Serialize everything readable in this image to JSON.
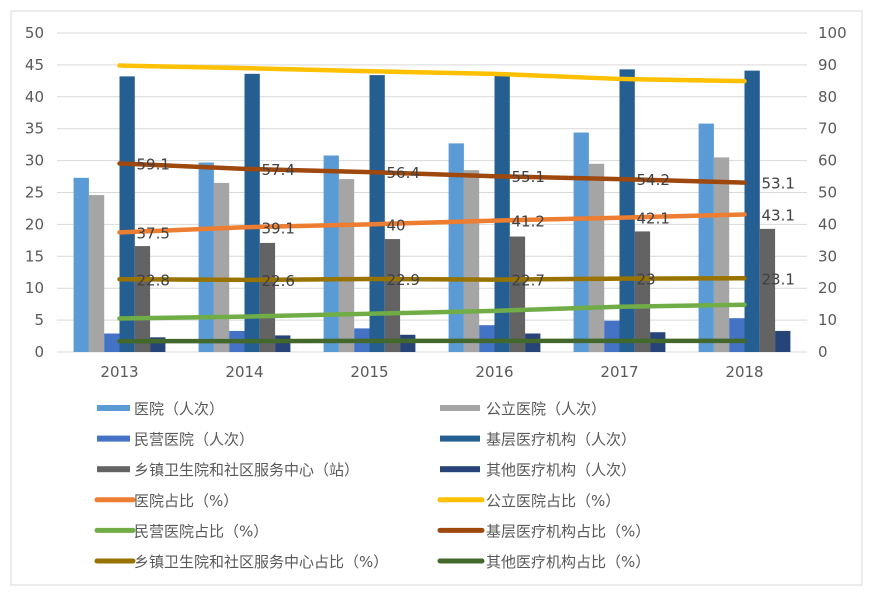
{
  "chart_data": {
    "type": "bar",
    "categories": [
      "2013",
      "2014",
      "2015",
      "2016",
      "2017",
      "2018"
    ],
    "y_left": {
      "range": [
        0,
        50
      ],
      "ticks": [
        "0",
        "5",
        "10",
        "15",
        "20",
        "25",
        "30",
        "35",
        "40",
        "45",
        "50"
      ]
    },
    "y_right": {
      "range": [
        0,
        100
      ],
      "ticks": [
        "0",
        "10",
        "20",
        "30",
        "40",
        "50",
        "60",
        "70",
        "80",
        "90",
        "100"
      ]
    },
    "grid": true,
    "legend_position": "bottom",
    "bar_series": [
      {
        "name": "医院（人次）",
        "color": "#5B9BD5",
        "values": [
          27.3,
          29.7,
          30.8,
          32.7,
          34.4,
          35.8
        ]
      },
      {
        "name": "公立医院（人次）",
        "color": "#A5A5A5",
        "values": [
          24.6,
          26.5,
          27.1,
          28.5,
          29.5,
          30.5
        ]
      },
      {
        "name": "民营医院（人次）",
        "color": "#4472C4",
        "values": [
          2.9,
          3.3,
          3.7,
          4.2,
          4.9,
          5.3
        ]
      },
      {
        "name": "基层医疗机构（人次）",
        "color": "#255E91",
        "values": [
          43.2,
          43.6,
          43.4,
          43.6,
          44.3,
          44.1
        ]
      },
      {
        "name": "乡镇卫生院和社区服务中心（站）",
        "color": "#636363",
        "values": [
          16.6,
          17.1,
          17.7,
          18.1,
          18.9,
          19.3
        ]
      },
      {
        "name": "其他医疗机构（人次）",
        "color": "#264478",
        "values": [
          2.3,
          2.6,
          2.7,
          2.9,
          3.1,
          3.3
        ]
      }
    ],
    "line_series": [
      {
        "name": "医院占比（%）",
        "color": "#ED7D31",
        "values": [
          37.5,
          39.1,
          40,
          41.2,
          42.1,
          43.1
        ],
        "labels": [
          "37.5",
          "39.1",
          "40",
          "41.2",
          "42.1",
          "43.1"
        ]
      },
      {
        "name": "公立医院占比（%）",
        "color": "#FFC000",
        "values": [
          89.8,
          89.0,
          88.0,
          87.2,
          85.6,
          84.9
        ],
        "labels": []
      },
      {
        "name": "民营医院占比（%）",
        "color": "#70AD47",
        "values": [
          10.5,
          11.1,
          12.0,
          12.9,
          14.2,
          14.8
        ],
        "labels": []
      },
      {
        "name": "基层医疗机构占比（%）",
        "color": "#9E480E",
        "values": [
          59.1,
          57.4,
          56.4,
          55.1,
          54.2,
          53.1
        ],
        "labels": [
          "59.1",
          "57.4",
          "56.4",
          "55.1",
          "54.2",
          "53.1"
        ]
      },
      {
        "name": "乡镇卫生院和社区服务中心占比（%）",
        "color": "#997300",
        "values": [
          22.8,
          22.6,
          22.9,
          22.7,
          23,
          23.1
        ],
        "labels": [
          "22.8",
          "22.6",
          "22.9",
          "22.7",
          "23",
          "23.1"
        ]
      },
      {
        "name": "其他医疗机构占比（%）",
        "color": "#43682B",
        "values": [
          3.4,
          3.4,
          3.5,
          3.5,
          3.5,
          3.5
        ],
        "labels": []
      }
    ]
  }
}
